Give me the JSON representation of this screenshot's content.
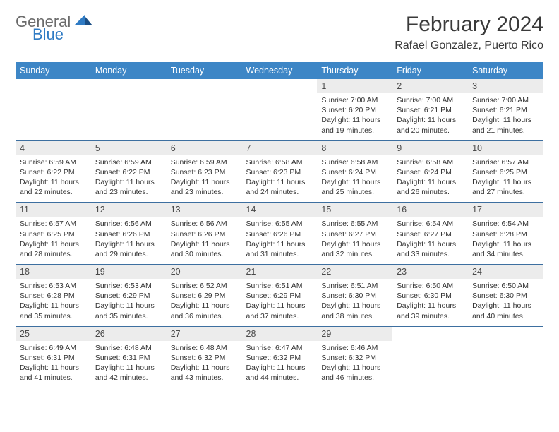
{
  "logo": {
    "text_general": "General",
    "text_blue": "Blue"
  },
  "title": "February 2024",
  "location": "Rafael Gonzalez, Puerto Rico",
  "colors": {
    "header_bg": "#3d86c6",
    "header_text": "#ffffff",
    "daynum_bg": "#ececec",
    "row_border": "#3d6fa0",
    "logo_gray": "#6b6b6b",
    "logo_blue": "#2f7bc4"
  },
  "weekdays": [
    "Sunday",
    "Monday",
    "Tuesday",
    "Wednesday",
    "Thursday",
    "Friday",
    "Saturday"
  ],
  "weeks": [
    [
      {
        "empty": true
      },
      {
        "empty": true
      },
      {
        "empty": true
      },
      {
        "empty": true
      },
      {
        "day": "1",
        "sunrise": "Sunrise: 7:00 AM",
        "sunset": "Sunset: 6:20 PM",
        "daylight1": "Daylight: 11 hours",
        "daylight2": "and 19 minutes."
      },
      {
        "day": "2",
        "sunrise": "Sunrise: 7:00 AM",
        "sunset": "Sunset: 6:21 PM",
        "daylight1": "Daylight: 11 hours",
        "daylight2": "and 20 minutes."
      },
      {
        "day": "3",
        "sunrise": "Sunrise: 7:00 AM",
        "sunset": "Sunset: 6:21 PM",
        "daylight1": "Daylight: 11 hours",
        "daylight2": "and 21 minutes."
      }
    ],
    [
      {
        "day": "4",
        "sunrise": "Sunrise: 6:59 AM",
        "sunset": "Sunset: 6:22 PM",
        "daylight1": "Daylight: 11 hours",
        "daylight2": "and 22 minutes."
      },
      {
        "day": "5",
        "sunrise": "Sunrise: 6:59 AM",
        "sunset": "Sunset: 6:22 PM",
        "daylight1": "Daylight: 11 hours",
        "daylight2": "and 23 minutes."
      },
      {
        "day": "6",
        "sunrise": "Sunrise: 6:59 AM",
        "sunset": "Sunset: 6:23 PM",
        "daylight1": "Daylight: 11 hours",
        "daylight2": "and 23 minutes."
      },
      {
        "day": "7",
        "sunrise": "Sunrise: 6:58 AM",
        "sunset": "Sunset: 6:23 PM",
        "daylight1": "Daylight: 11 hours",
        "daylight2": "and 24 minutes."
      },
      {
        "day": "8",
        "sunrise": "Sunrise: 6:58 AM",
        "sunset": "Sunset: 6:24 PM",
        "daylight1": "Daylight: 11 hours",
        "daylight2": "and 25 minutes."
      },
      {
        "day": "9",
        "sunrise": "Sunrise: 6:58 AM",
        "sunset": "Sunset: 6:24 PM",
        "daylight1": "Daylight: 11 hours",
        "daylight2": "and 26 minutes."
      },
      {
        "day": "10",
        "sunrise": "Sunrise: 6:57 AM",
        "sunset": "Sunset: 6:25 PM",
        "daylight1": "Daylight: 11 hours",
        "daylight2": "and 27 minutes."
      }
    ],
    [
      {
        "day": "11",
        "sunrise": "Sunrise: 6:57 AM",
        "sunset": "Sunset: 6:25 PM",
        "daylight1": "Daylight: 11 hours",
        "daylight2": "and 28 minutes."
      },
      {
        "day": "12",
        "sunrise": "Sunrise: 6:56 AM",
        "sunset": "Sunset: 6:26 PM",
        "daylight1": "Daylight: 11 hours",
        "daylight2": "and 29 minutes."
      },
      {
        "day": "13",
        "sunrise": "Sunrise: 6:56 AM",
        "sunset": "Sunset: 6:26 PM",
        "daylight1": "Daylight: 11 hours",
        "daylight2": "and 30 minutes."
      },
      {
        "day": "14",
        "sunrise": "Sunrise: 6:55 AM",
        "sunset": "Sunset: 6:26 PM",
        "daylight1": "Daylight: 11 hours",
        "daylight2": "and 31 minutes."
      },
      {
        "day": "15",
        "sunrise": "Sunrise: 6:55 AM",
        "sunset": "Sunset: 6:27 PM",
        "daylight1": "Daylight: 11 hours",
        "daylight2": "and 32 minutes."
      },
      {
        "day": "16",
        "sunrise": "Sunrise: 6:54 AM",
        "sunset": "Sunset: 6:27 PM",
        "daylight1": "Daylight: 11 hours",
        "daylight2": "and 33 minutes."
      },
      {
        "day": "17",
        "sunrise": "Sunrise: 6:54 AM",
        "sunset": "Sunset: 6:28 PM",
        "daylight1": "Daylight: 11 hours",
        "daylight2": "and 34 minutes."
      }
    ],
    [
      {
        "day": "18",
        "sunrise": "Sunrise: 6:53 AM",
        "sunset": "Sunset: 6:28 PM",
        "daylight1": "Daylight: 11 hours",
        "daylight2": "and 35 minutes."
      },
      {
        "day": "19",
        "sunrise": "Sunrise: 6:53 AM",
        "sunset": "Sunset: 6:29 PM",
        "daylight1": "Daylight: 11 hours",
        "daylight2": "and 35 minutes."
      },
      {
        "day": "20",
        "sunrise": "Sunrise: 6:52 AM",
        "sunset": "Sunset: 6:29 PM",
        "daylight1": "Daylight: 11 hours",
        "daylight2": "and 36 minutes."
      },
      {
        "day": "21",
        "sunrise": "Sunrise: 6:51 AM",
        "sunset": "Sunset: 6:29 PM",
        "daylight1": "Daylight: 11 hours",
        "daylight2": "and 37 minutes."
      },
      {
        "day": "22",
        "sunrise": "Sunrise: 6:51 AM",
        "sunset": "Sunset: 6:30 PM",
        "daylight1": "Daylight: 11 hours",
        "daylight2": "and 38 minutes."
      },
      {
        "day": "23",
        "sunrise": "Sunrise: 6:50 AM",
        "sunset": "Sunset: 6:30 PM",
        "daylight1": "Daylight: 11 hours",
        "daylight2": "and 39 minutes."
      },
      {
        "day": "24",
        "sunrise": "Sunrise: 6:50 AM",
        "sunset": "Sunset: 6:30 PM",
        "daylight1": "Daylight: 11 hours",
        "daylight2": "and 40 minutes."
      }
    ],
    [
      {
        "day": "25",
        "sunrise": "Sunrise: 6:49 AM",
        "sunset": "Sunset: 6:31 PM",
        "daylight1": "Daylight: 11 hours",
        "daylight2": "and 41 minutes."
      },
      {
        "day": "26",
        "sunrise": "Sunrise: 6:48 AM",
        "sunset": "Sunset: 6:31 PM",
        "daylight1": "Daylight: 11 hours",
        "daylight2": "and 42 minutes."
      },
      {
        "day": "27",
        "sunrise": "Sunrise: 6:48 AM",
        "sunset": "Sunset: 6:32 PM",
        "daylight1": "Daylight: 11 hours",
        "daylight2": "and 43 minutes."
      },
      {
        "day": "28",
        "sunrise": "Sunrise: 6:47 AM",
        "sunset": "Sunset: 6:32 PM",
        "daylight1": "Daylight: 11 hours",
        "daylight2": "and 44 minutes."
      },
      {
        "day": "29",
        "sunrise": "Sunrise: 6:46 AM",
        "sunset": "Sunset: 6:32 PM",
        "daylight1": "Daylight: 11 hours",
        "daylight2": "and 46 minutes."
      },
      {
        "empty": true
      },
      {
        "empty": true
      }
    ]
  ]
}
